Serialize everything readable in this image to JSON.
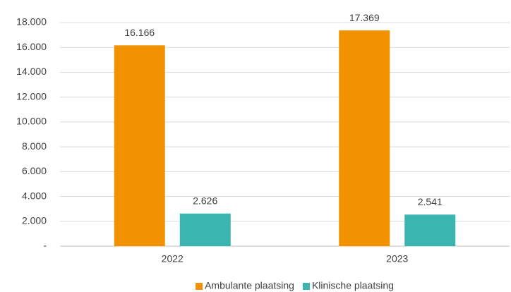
{
  "chart_data": {
    "type": "bar",
    "categories": [
      "2022",
      "2023"
    ],
    "series": [
      {
        "name": "Ambulante plaatsing",
        "color": "#f39200",
        "values": [
          16166,
          17369
        ],
        "value_labels": [
          "16.166",
          "17.369"
        ]
      },
      {
        "name": "Klinische plaatsing",
        "color": "#3bb5b0",
        "values": [
          2626,
          2541
        ],
        "value_labels": [
          "2.626",
          "2.541"
        ]
      }
    ],
    "ylim": [
      0,
      18000
    ],
    "yticks": [
      {
        "value": 0,
        "label": "-"
      },
      {
        "value": 2000,
        "label": "2.000"
      },
      {
        "value": 4000,
        "label": "4.000"
      },
      {
        "value": 6000,
        "label": "6.000"
      },
      {
        "value": 8000,
        "label": "8.000"
      },
      {
        "value": 10000,
        "label": "10.000"
      },
      {
        "value": 12000,
        "label": "12.000"
      },
      {
        "value": 14000,
        "label": "14.000"
      },
      {
        "value": 16000,
        "label": "16.000"
      },
      {
        "value": 18000,
        "label": "18.000"
      }
    ],
    "grid": true,
    "legend": "bottom"
  }
}
